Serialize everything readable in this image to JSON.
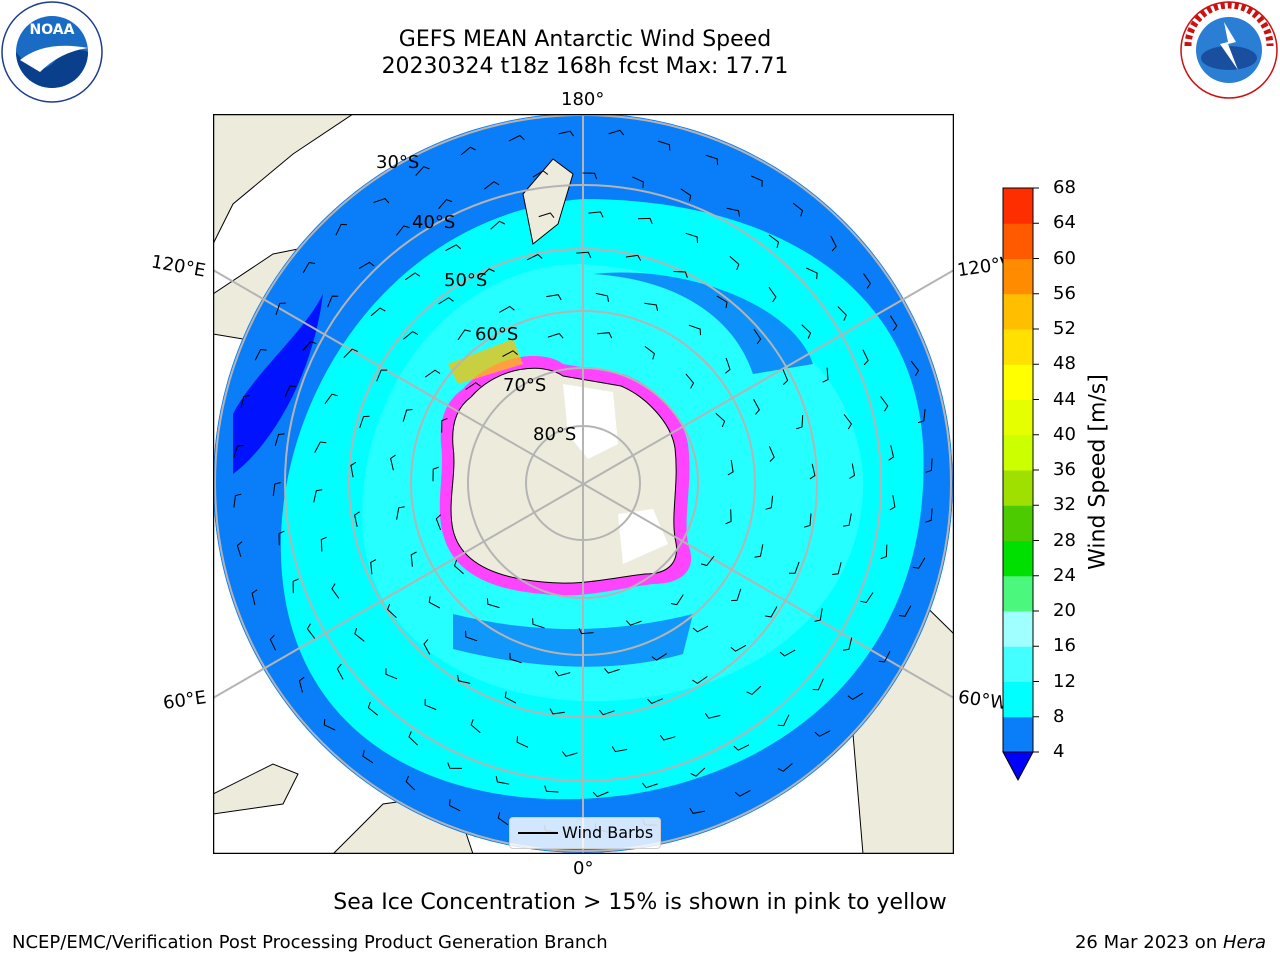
{
  "title": {
    "line1": "GEFS MEAN Antarctic Wind Speed",
    "line2": "20230324 t18z 168h fcst   Max: 17.71"
  },
  "logos": {
    "left": "NOAA",
    "right": "NATIONAL WEATHER SERVICE"
  },
  "map": {
    "projection": "south-polar-stereographic",
    "lon_labels": {
      "top": "180°",
      "bottom": "0°",
      "left_upper": "120°E",
      "left_lower": "60°E",
      "right_upper": "120°W",
      "right_lower": "60°W"
    },
    "lat_labels": [
      "30°S",
      "40°S",
      "50°S",
      "60°S",
      "70°S",
      "80°S"
    ],
    "colors": {
      "ocean_low": "#0a7df8",
      "ocean_mid": "#00ffff",
      "ocean_cyan2": "#44ffff",
      "land": "#edecdc",
      "ice_edge": "#ff44ff",
      "deep_blue": "#0000ff",
      "grid": "#b4b4b4"
    }
  },
  "colorbar": {
    "title": "Wind Speed [m/s]",
    "ticks": [
      "4",
      "8",
      "12",
      "16",
      "20",
      "24",
      "28",
      "32",
      "36",
      "40",
      "44",
      "48",
      "52",
      "56",
      "60",
      "64",
      "68"
    ],
    "colors": [
      "#0a7df8",
      "#00ffff",
      "#44ffff",
      "#a0ffff",
      "#4cf77d",
      "#00e000",
      "#4ccc00",
      "#a0e000",
      "#ccff00",
      "#e6ff00",
      "#ffff00",
      "#ffe000",
      "#ffbf00",
      "#ff8c00",
      "#ff5a00",
      "#ff2e00",
      "#ff0000"
    ],
    "under_color": "#0000ff"
  },
  "legend": {
    "label": "Wind Barbs"
  },
  "footnote": "Sea Ice Concentration > 15% is shown in pink to yellow",
  "credit": {
    "left": "NCEP/EMC/Verification Post Processing Product Generation Branch",
    "right_prefix": "26 Mar 2023 on ",
    "right_system": "Hera"
  }
}
